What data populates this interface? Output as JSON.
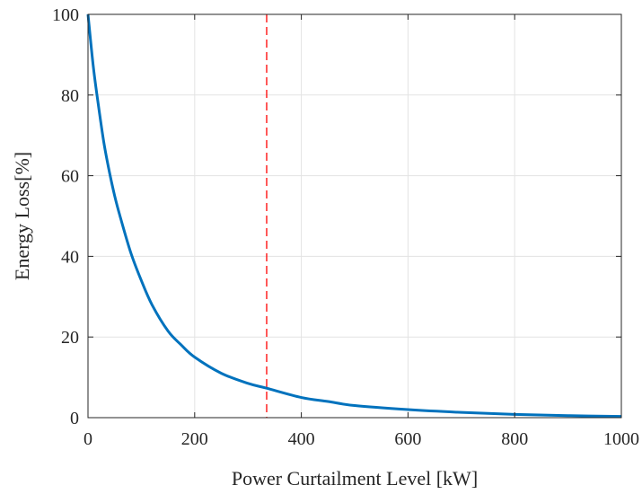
{
  "chart_data": {
    "type": "line",
    "title": "",
    "xlabel": "Power Curtailment Level [kW]",
    "ylabel": "Energy Loss[%]",
    "xlim": [
      0,
      1000
    ],
    "ylim": [
      0,
      100
    ],
    "xticks": [
      0,
      200,
      400,
      600,
      800,
      1000
    ],
    "yticks": [
      0,
      20,
      40,
      60,
      80,
      100
    ],
    "xtick_labels": [
      "0",
      "200",
      "400",
      "600",
      "800",
      "1000"
    ],
    "ytick_labels": [
      "0",
      "20",
      "40",
      "60",
      "80",
      "100"
    ],
    "grid": true,
    "series": [
      {
        "color": "#0072bd",
        "x": [
          0,
          10,
          20,
          30,
          40,
          50,
          60,
          80,
          100,
          120,
          150,
          175,
          200,
          250,
          300,
          335,
          400,
          450,
          500,
          600,
          700,
          800,
          900,
          1000
        ],
        "y": [
          100,
          87,
          77,
          68,
          61,
          55,
          50,
          41,
          34,
          28,
          21.5,
          18,
          15,
          11,
          8.5,
          7.3,
          5.0,
          4.0,
          3.0,
          2.0,
          1.3,
          0.8,
          0.5,
          0.3
        ]
      }
    ],
    "reference_lines": [
      {
        "orientation": "vertical",
        "x": 335,
        "color": "#ff0000",
        "style": "dashed"
      }
    ]
  }
}
